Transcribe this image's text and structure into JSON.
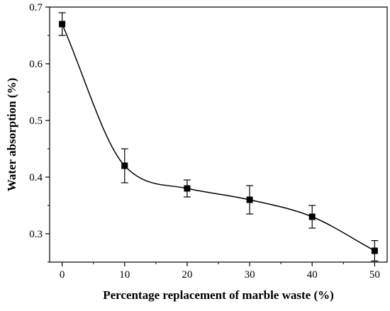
{
  "chart_data": {
    "type": "line",
    "title": "",
    "xlabel": "Percentage replacement of marble waste (%)",
    "ylabel": "Water absorption (%)",
    "xlim": [
      -2,
      52
    ],
    "ylim": [
      0.25,
      0.7
    ],
    "x_ticks": [
      0,
      10,
      20,
      30,
      40,
      50
    ],
    "x_tick_labels": [
      "0",
      "10",
      "20",
      "30",
      "40",
      "50"
    ],
    "y_ticks": [
      0.3,
      0.4,
      0.5,
      0.6,
      0.7
    ],
    "y_tick_labels": [
      "0.3",
      "0.4",
      "0.5",
      "0.6",
      "0.7"
    ],
    "grid": false,
    "legend": "none",
    "series": [
      {
        "marker": "square",
        "color": "#000000",
        "curve": "smooth",
        "x": [
          0,
          10,
          20,
          30,
          40,
          50
        ],
        "y": [
          0.67,
          0.42,
          0.38,
          0.36,
          0.33,
          0.27
        ],
        "error": [
          0.02,
          0.03,
          0.015,
          0.025,
          0.02,
          0.018
        ]
      }
    ]
  }
}
